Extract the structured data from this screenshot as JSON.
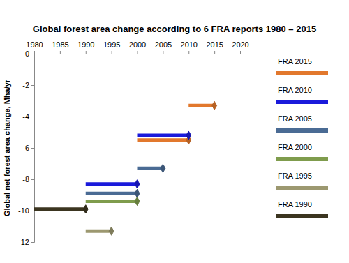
{
  "chart_data": {
    "type": "segment",
    "title": "Global forest area change according to 6 FRA reports 1980 – 2015",
    "y_label": "Global net forest area change, Mha/yr",
    "xlim": [
      1980,
      2020
    ],
    "xticks": [
      1980,
      1985,
      1990,
      1995,
      2000,
      2005,
      2010,
      2015,
      2020
    ],
    "ylim": [
      -12,
      0
    ],
    "yticks": [
      0,
      -2,
      -4,
      -6,
      -8,
      -10,
      -12
    ],
    "grid": false,
    "legend": "right",
    "marker": "diamond",
    "series": [
      {
        "name": "FRA 2015",
        "color": "#e2782d",
        "x_start": [
          2000,
          2010
        ],
        "x_end": [
          2010,
          2015
        ],
        "values": [
          -5.5,
          -3.3
        ]
      },
      {
        "name": "FRA 2010",
        "color": "#1a1adb",
        "x_start": [
          1990,
          2000
        ],
        "x_end": [
          2000,
          2010
        ],
        "values": [
          -8.3,
          -5.2
        ]
      },
      {
        "name": "FRA 2005",
        "color": "#4a6b94",
        "x_start": [
          1990,
          2000
        ],
        "x_end": [
          2000,
          2005
        ],
        "values": [
          -8.9,
          -7.3
        ]
      },
      {
        "name": "FRA 2000",
        "color": "#7f9c4d",
        "x_start": [
          1990
        ],
        "x_end": [
          2000
        ],
        "values": [
          -9.4
        ]
      },
      {
        "name": "FRA 1995",
        "color": "#9c9870",
        "x_start": [
          1990
        ],
        "x_end": [
          1995
        ],
        "values": [
          -11.3
        ]
      },
      {
        "name": "FRA 1990",
        "color": "#3b3520",
        "x_start": [
          1980
        ],
        "x_end": [
          1990
        ],
        "values": [
          -9.9
        ]
      }
    ]
  }
}
